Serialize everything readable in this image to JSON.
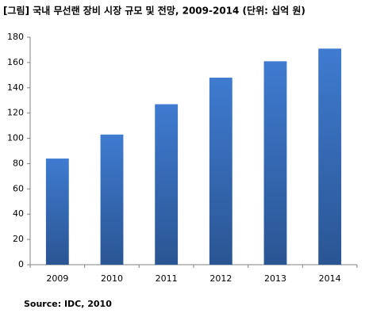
{
  "chart_data": {
    "type": "bar",
    "title": "[그림] 국내 무선랜 장비 시장 규모 및 전망, 2009-2014 (단위: 십억 원)",
    "source": "Source: IDC, 2010",
    "categories": [
      "2009",
      "2010",
      "2011",
      "2012",
      "2013",
      "2014"
    ],
    "values": [
      84,
      103,
      127,
      148,
      161,
      171
    ],
    "color": "#3f7bd0",
    "ylim": [
      0,
      180
    ],
    "yticks": [
      0,
      20,
      40,
      60,
      80,
      100,
      120,
      140,
      160,
      180
    ],
    "grid": false
  }
}
